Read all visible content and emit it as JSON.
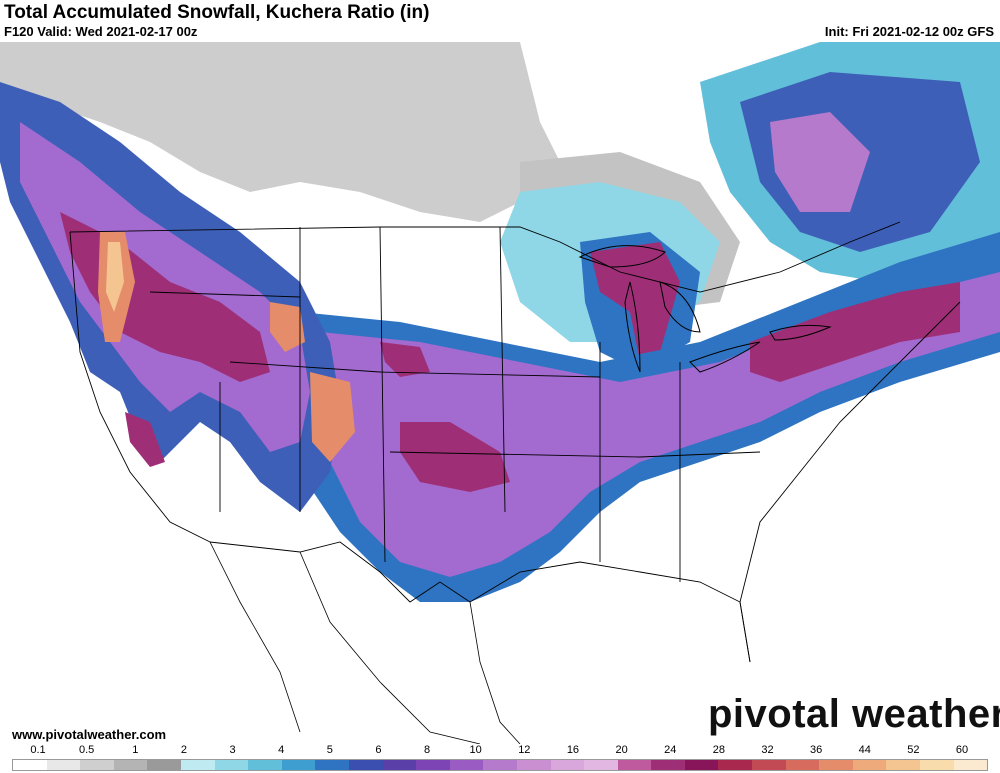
{
  "header": {
    "title": "Total Accumulated Snowfall, Kuchera Ratio (in)",
    "valid": "F120 Valid: Wed 2021-02-17 00z",
    "init": "Init: Fri 2021-02-12 00z GFS"
  },
  "footer": {
    "site": "www.pivotalweather.com",
    "brand": "pivotal weather"
  },
  "legend": {
    "labels": [
      "0.1",
      "0.5",
      "1",
      "2",
      "3",
      "4",
      "5",
      "6",
      "8",
      "10",
      "12",
      "16",
      "20",
      "24",
      "28",
      "32",
      "36",
      "44",
      "52",
      "60"
    ],
    "colors": [
      "#ffffff",
      "#e8e8e8",
      "#cfcfcf",
      "#b4b4b4",
      "#9a9a9a",
      "#bfeaf2",
      "#8fd6e6",
      "#62bfd9",
      "#3d9ecf",
      "#2e74c2",
      "#3a4fb0",
      "#5b3fa8",
      "#7d44b5",
      "#9a5bc2",
      "#b57acc",
      "#c98fd1",
      "#d9a7dc",
      "#e2b7e1",
      "#c05a9e",
      "#9e2f76",
      "#88155a",
      "#a8284e",
      "#c24a55",
      "#d66b5e",
      "#e58c6a",
      "#efaa7c",
      "#f5c591",
      "#f9dcac",
      "#fcead0"
    ]
  },
  "map": {
    "snow_colors": {
      "light_gray": "#d9d9d9",
      "gray": "#bdbdbd",
      "light_blue": "#8fd6e6",
      "blue": "#2e74c2",
      "purple": "#a36ad0",
      "magenta": "#9e2f76",
      "orange": "#e58c6a",
      "tan": "#f5c591"
    }
  }
}
